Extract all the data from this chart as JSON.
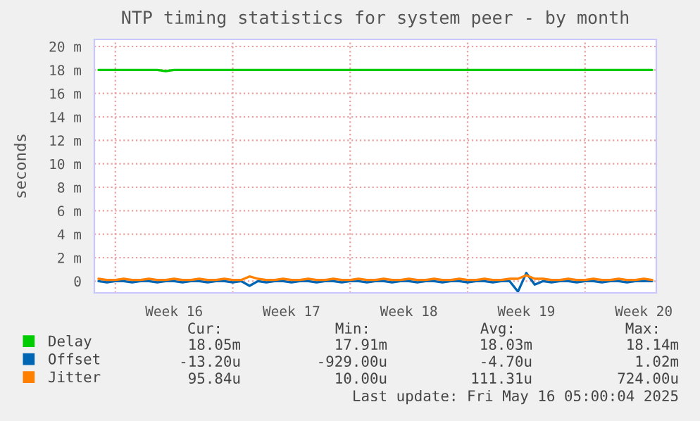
{
  "chart_data": {
    "type": "line",
    "title": "NTP timing statistics for system peer - by month",
    "ylabel": "seconds",
    "categories": [
      null,
      null,
      null,
      null,
      null,
      null,
      null,
      null,
      null,
      "Week 16",
      null,
      null,
      null,
      null,
      null,
      null,
      null,
      null,
      null,
      null,
      null,
      null,
      null,
      "Week 17",
      null,
      null,
      null,
      null,
      null,
      null,
      null,
      null,
      null,
      null,
      null,
      null,
      null,
      "Week 18",
      null,
      null,
      null,
      null,
      null,
      null,
      null,
      null,
      null,
      null,
      null,
      null,
      null,
      "Week 19",
      null,
      null,
      null,
      null,
      null,
      null,
      null,
      null,
      null,
      null,
      null,
      null,
      null,
      "Week 20",
      null
    ],
    "ylim": [
      -1,
      20.6
    ],
    "yticks": [
      {
        "value": 0,
        "label": "0"
      },
      {
        "value": 2,
        "label": "2 m"
      },
      {
        "value": 4,
        "label": "4 m"
      },
      {
        "value": 6,
        "label": "6 m"
      },
      {
        "value": 8,
        "label": "8 m"
      },
      {
        "value": 10,
        "label": "10 m"
      },
      {
        "value": 12,
        "label": "12 m"
      },
      {
        "value": 14,
        "label": "14 m"
      },
      {
        "value": 16,
        "label": "16 m"
      },
      {
        "value": 18,
        "label": "18 m"
      },
      {
        "value": 20,
        "label": "20 m"
      }
    ],
    "series": [
      {
        "name": "Delay",
        "color": "#00cc00",
        "values": [
          18.0,
          18.0,
          18.0,
          18.0,
          18.0,
          18.0,
          18.0,
          18.0,
          17.9,
          18.0,
          18.0,
          18.0,
          18.0,
          18.0,
          18.0,
          18.0,
          18.0,
          18.0,
          18.0,
          18.0,
          18.0,
          18.0,
          18.0,
          18.0,
          18.0,
          18.0,
          18.0,
          18.0,
          18.0,
          18.0,
          18.0,
          18.0,
          18.0,
          18.0,
          18.0,
          18.0,
          18.0,
          18.0,
          18.0,
          18.0,
          18.0,
          18.0,
          18.0,
          18.0,
          18.0,
          18.0,
          18.0,
          18.0,
          18.0,
          18.0,
          18.0,
          18.0,
          18.0,
          18.0,
          18.0,
          18.0,
          18.0,
          18.0,
          18.0,
          18.0,
          18.0,
          18.0,
          18.0,
          18.0,
          18.0,
          18.0,
          18.0
        ]
      },
      {
        "name": "Offset",
        "color": "#0066b3",
        "values": [
          0.0,
          -0.1,
          0.0,
          0.0,
          -0.1,
          0.0,
          0.0,
          -0.1,
          0.0,
          0.0,
          -0.1,
          0.0,
          0.0,
          -0.1,
          0.0,
          0.0,
          -0.1,
          0.0,
          -0.4,
          0.0,
          -0.1,
          0.0,
          0.0,
          -0.1,
          0.0,
          0.0,
          -0.1,
          0.0,
          0.0,
          -0.1,
          0.0,
          0.0,
          -0.1,
          0.0,
          0.0,
          -0.1,
          0.0,
          0.0,
          -0.1,
          0.0,
          0.0,
          -0.1,
          0.0,
          0.0,
          -0.1,
          0.0,
          0.0,
          -0.1,
          0.0,
          0.0,
          -0.9,
          0.7,
          -0.3,
          0.0,
          -0.1,
          0.0,
          0.0,
          -0.1,
          0.0,
          0.0,
          -0.1,
          0.0,
          0.0,
          -0.1,
          0.0,
          0.0,
          0.0
        ]
      },
      {
        "name": "Jitter",
        "color": "#ff8000",
        "values": [
          0.2,
          0.1,
          0.1,
          0.2,
          0.1,
          0.1,
          0.2,
          0.1,
          0.1,
          0.2,
          0.1,
          0.1,
          0.2,
          0.1,
          0.1,
          0.2,
          0.1,
          0.1,
          0.4,
          0.2,
          0.1,
          0.1,
          0.2,
          0.1,
          0.1,
          0.2,
          0.1,
          0.1,
          0.2,
          0.1,
          0.1,
          0.2,
          0.1,
          0.1,
          0.2,
          0.1,
          0.1,
          0.2,
          0.1,
          0.1,
          0.2,
          0.1,
          0.1,
          0.2,
          0.1,
          0.1,
          0.2,
          0.1,
          0.1,
          0.2,
          0.2,
          0.5,
          0.2,
          0.2,
          0.1,
          0.1,
          0.2,
          0.1,
          0.1,
          0.2,
          0.1,
          0.1,
          0.2,
          0.1,
          0.1,
          0.2,
          0.1
        ]
      }
    ],
    "grid": true,
    "legend": "bottom",
    "annotations": [
      "Cur:",
      "Min:",
      "Avg:",
      "Max:",
      "18.05m",
      "17.91m",
      "18.03m",
      "18.14m",
      "-13.20u",
      "-929.00u",
      "-4.70u",
      "1.02m",
      "95.84u",
      "10.00u",
      "111.31u",
      "724.00u",
      "Last update: Fri May 16 05:00:04 2025"
    ]
  }
}
